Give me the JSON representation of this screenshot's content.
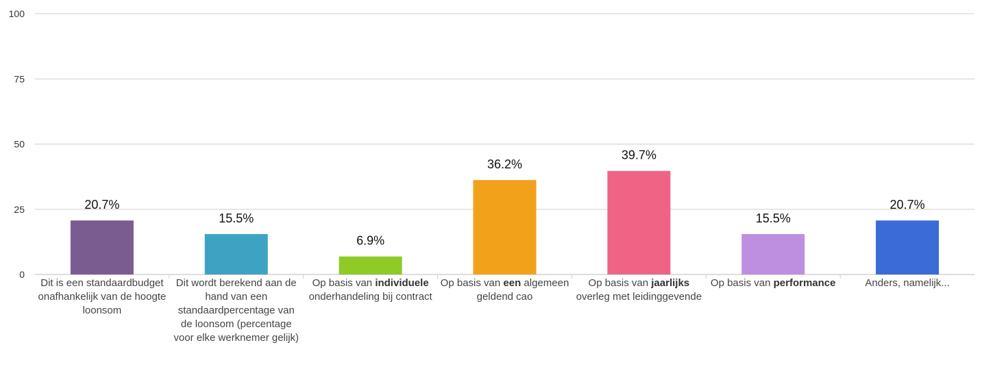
{
  "chart_data": {
    "type": "bar",
    "title": "",
    "xlabel": "",
    "ylabel": "",
    "ylim": [
      0,
      100
    ],
    "yticks": [
      "0",
      "25",
      "50",
      "75",
      "100"
    ],
    "grid": true,
    "categories": [
      {
        "parts": [
          {
            "text": "Dit is een standaardbudget onafhankelijk van de hoogte loonsom",
            "bold": false
          }
        ]
      },
      {
        "parts": [
          {
            "text": "Dit wordt berekend aan de hand van een standaardpercentage van de loonsom (percentage voor elke werknemer gelijk)",
            "bold": false
          }
        ]
      },
      {
        "parts": [
          {
            "text": "Op basis van ",
            "bold": false
          },
          {
            "text": "individuele",
            "bold": true
          },
          {
            "text": " onderhandeling bij contract",
            "bold": false
          }
        ]
      },
      {
        "parts": [
          {
            "text": "Op basis van ",
            "bold": false
          },
          {
            "text": "een",
            "bold": true
          },
          {
            "text": " algemeen geldend cao",
            "bold": false
          }
        ]
      },
      {
        "parts": [
          {
            "text": "Op basis van ",
            "bold": false
          },
          {
            "text": "jaarlijks",
            "bold": true
          },
          {
            "text": " overleg met leidinggevende",
            "bold": false
          }
        ]
      },
      {
        "parts": [
          {
            "text": "Op basis van ",
            "bold": false
          },
          {
            "text": "performance",
            "bold": true
          }
        ]
      },
      {
        "parts": [
          {
            "text": "Anders, namelijk...",
            "bold": false
          }
        ]
      }
    ],
    "values": [
      20.7,
      15.5,
      6.9,
      36.2,
      39.7,
      15.5,
      20.7
    ],
    "value_labels": [
      "20.7%",
      "15.5%",
      "6.9%",
      "36.2%",
      "39.7%",
      "15.5%",
      "20.7%"
    ],
    "colors": [
      "#7b5c91",
      "#3ea3c2",
      "#8fca27",
      "#f2a21a",
      "#ef6485",
      "#be8fe0",
      "#3a6bd6"
    ]
  }
}
